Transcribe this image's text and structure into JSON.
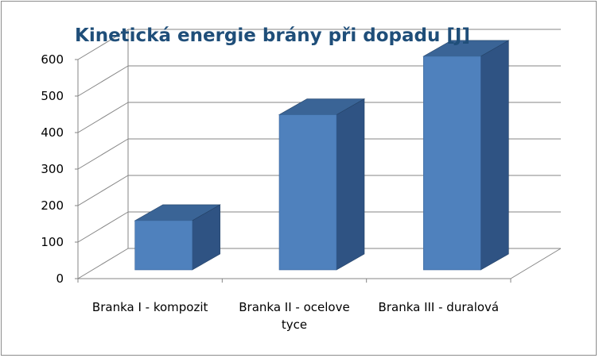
{
  "chart_data": {
    "type": "bar",
    "title": "Kinetická energie brány při dopadu [J]",
    "categories": [
      [
        "Branka I - kompozit"
      ],
      [
        "Branka II - ocelove",
        "tyce"
      ],
      [
        "Branka III - duralová"
      ]
    ],
    "values": [
      135,
      425,
      585
    ],
    "xlabel": "",
    "ylabel": "",
    "ylim": [
      0,
      600
    ],
    "yticks": [
      0,
      100,
      200,
      300,
      400,
      500,
      600
    ],
    "grid": true,
    "legend": "none",
    "three_d": true,
    "colors": {
      "bar_front": "#4f81bd",
      "bar_side": "#2f5383",
      "bar_top": "#3a6496",
      "gridline": "#868686",
      "title": "#1f4e79"
    }
  }
}
